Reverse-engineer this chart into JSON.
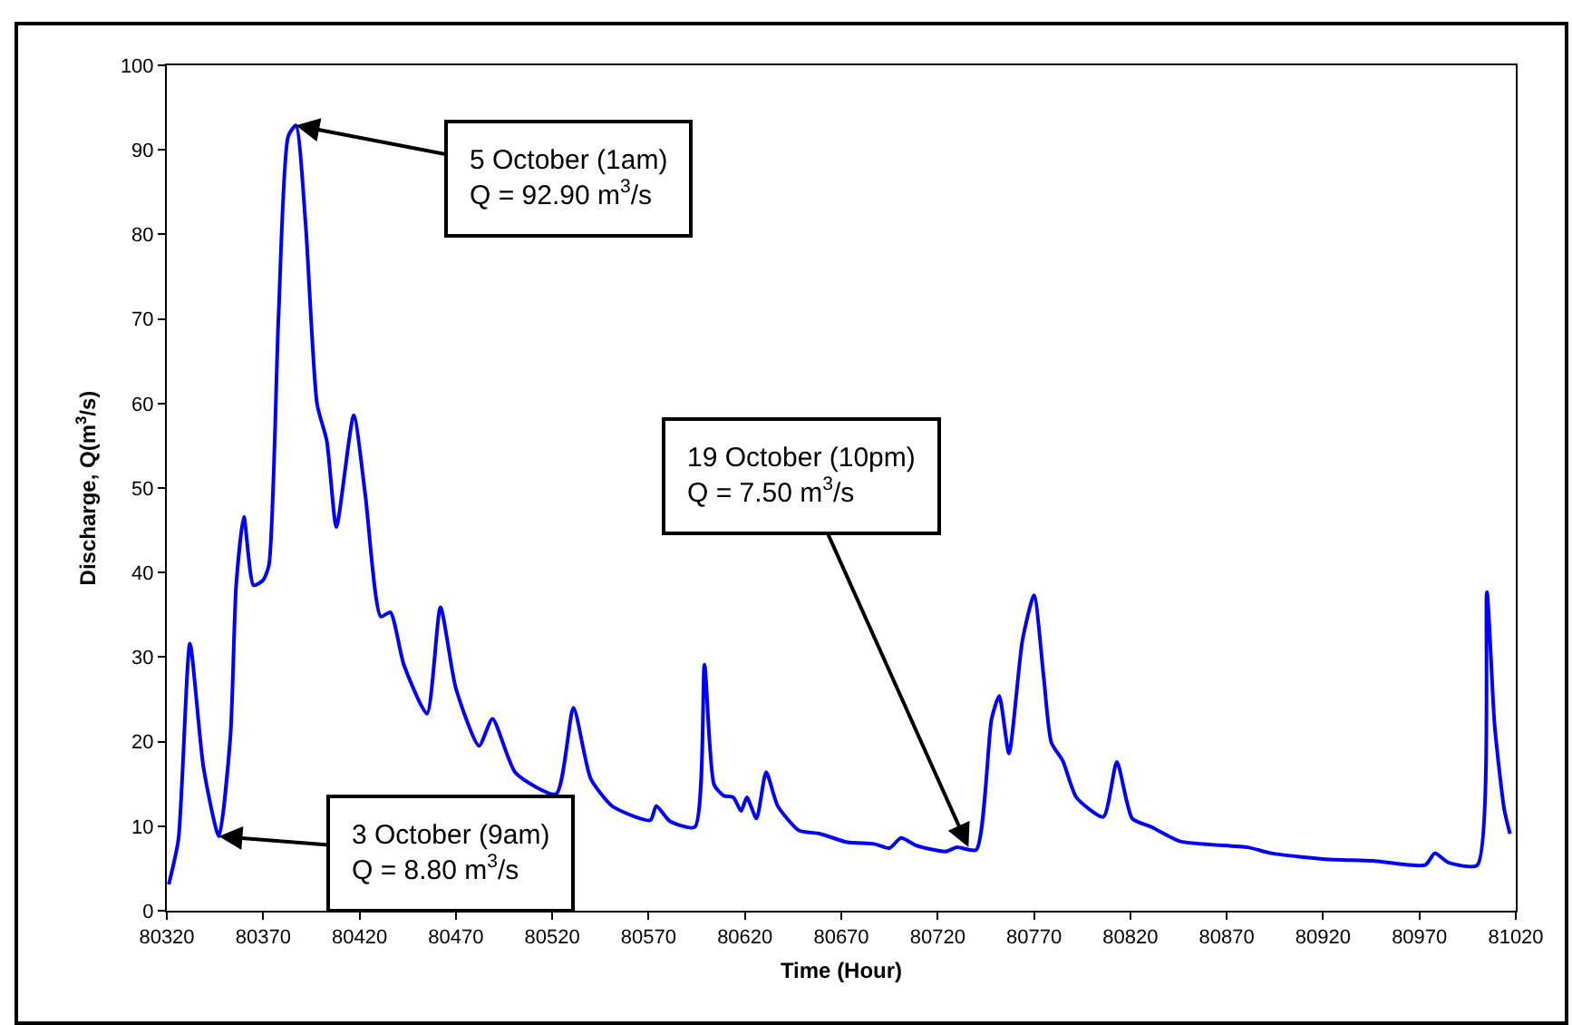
{
  "chart_data": {
    "type": "line",
    "xlabel": "Time (Hour)",
    "ylabel": "Discharge, Q(m$^{3}$/s)",
    "x": [
      80321,
      80326,
      80332,
      80339,
      80347,
      80353,
      80356,
      80360,
      80365,
      80370,
      80373,
      80378,
      80383,
      80387,
      80392,
      80398,
      80403,
      80408,
      80417,
      80423,
      80431,
      80436,
      80443,
      80455,
      80462,
      80470,
      80482,
      80489,
      80501,
      80522,
      80531,
      80540,
      80551,
      80562,
      80571,
      80574,
      80581,
      80594,
      80599,
      80604,
      80609,
      80614,
      80618,
      80621,
      80626,
      80631,
      80637,
      80648,
      80659,
      80673,
      80687,
      80695,
      80701,
      80709,
      80724,
      80730,
      80740,
      80748,
      80752,
      80757,
      80764,
      80770,
      80775,
      80779,
      80785,
      80792,
      80806,
      80813,
      80821,
      80831,
      80846,
      80881,
      80893,
      80921,
      80946,
      80973,
      80978,
      80985,
      81000,
      81005,
      81009,
      81014,
      81017
    ],
    "series": [
      {
        "color": "#0000ff",
        "values": [
          3.1,
          8.4,
          31.6,
          17,
          8.8,
          20.6,
          38.5,
          46.6,
          38.5,
          39.1,
          40.9,
          70.5,
          91.6,
          92.9,
          81.3,
          59.9,
          55.6,
          45.4,
          58.6,
          49.2,
          34.8,
          35.3,
          29.1,
          23.3,
          35.9,
          26.3,
          19.5,
          22.7,
          16.3,
          13.8,
          24,
          15.6,
          12.4,
          11.2,
          10.7,
          12.4,
          10.6,
          9.9,
          29.1,
          14.9,
          13.6,
          13.4,
          11.8,
          13.4,
          10.9,
          16.4,
          12.4,
          9.5,
          9.1,
          8.1,
          7.9,
          7.4,
          8.6,
          7.7,
          7,
          7.5,
          7.2,
          22.7,
          25.4,
          18.6,
          32,
          37.3,
          27.7,
          19.9,
          17.7,
          13.4,
          11.1,
          17.6,
          10.9,
          9.9,
          8.2,
          7.5,
          6.8,
          6.1,
          5.9,
          5.4,
          6.8,
          5.7,
          5.4,
          37.7,
          22,
          12,
          9.1
        ]
      }
    ],
    "xlim": [
      80320,
      81020
    ],
    "xticks": [
      80320,
      80370,
      80420,
      80470,
      80520,
      80570,
      80620,
      80670,
      80720,
      80770,
      80820,
      80870,
      80920,
      80970,
      81020
    ],
    "ylim": [
      0,
      100
    ],
    "yticks": [
      0,
      10,
      20,
      30,
      40,
      50,
      60,
      70,
      80,
      90,
      100
    ],
    "grid": false,
    "marker": "none",
    "line_style": "solid",
    "annotations": [
      {
        "text": "5 October (1am)\nQ = 92.90 m$^{3}$/s",
        "x": 80387,
        "y": 92.9
      },
      {
        "text": "3 October (9am)\nQ = 8.80 m$^{3}$/s",
        "x": 80347,
        "y": 8.8
      },
      {
        "text": "19 October (10pm)\nQ = 7.50 m$^{3}$/s",
        "x": 80736,
        "y": 7.5
      }
    ]
  }
}
